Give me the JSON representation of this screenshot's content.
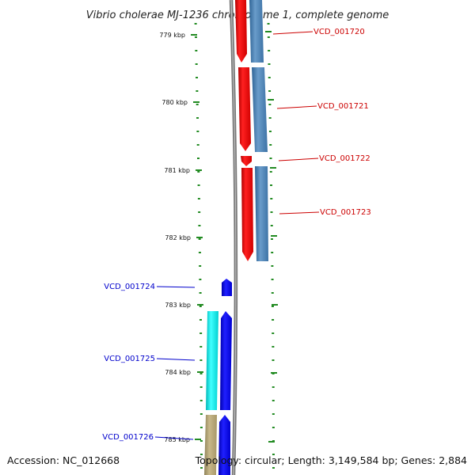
{
  "title": "Vibrio cholerae MJ-1236 chromosome 1, complete genome",
  "footer": {
    "accession": "Accession: NC_012668",
    "summary": "Topology: circular; Length: 3,149,584 bp; Genes: 2,884"
  },
  "scale": {
    "unit": "kbp",
    "ticks": [
      "779 kbp",
      "780 kbp",
      "781 kbp",
      "782 kbp",
      "783 kbp",
      "784 kbp",
      "785 kbp"
    ]
  },
  "genes": [
    {
      "id": "VCD_001720",
      "strand": "forward",
      "color": "#cc0000"
    },
    {
      "id": "VCD_001721",
      "strand": "forward",
      "color": "#cc0000"
    },
    {
      "id": "VCD_001722",
      "strand": "forward",
      "color": "#cc0000"
    },
    {
      "id": "VCD_001723",
      "strand": "forward",
      "color": "#cc0000"
    },
    {
      "id": "VCD_001724",
      "strand": "reverse",
      "color": "#0000cc"
    },
    {
      "id": "VCD_001725",
      "strand": "reverse",
      "color": "#0000cc"
    },
    {
      "id": "VCD_001726",
      "strand": "reverse",
      "color": "#0000cc"
    }
  ],
  "colors": {
    "cds_forward": "#ff0000",
    "cds_reverse": "#0000ff",
    "feature_forward": "#4682b4",
    "feature_reverse_cyan": "#00e5e5",
    "feature_reverse_khaki": "#b8a878",
    "backbone": "#888888",
    "tick": "#228b22"
  }
}
